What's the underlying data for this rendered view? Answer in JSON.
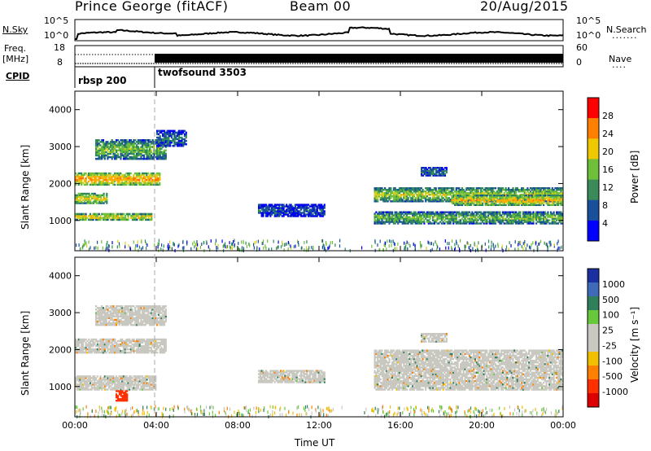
{
  "header": {
    "station": "Prince George (fitACF)",
    "beam": "Beam 00",
    "date": "20/Aug/2015"
  },
  "top_panel": {
    "left_label_nsky": "N.Sky",
    "left_label_freq_1": "Freq.",
    "left_label_freq_2": "[MHz]",
    "left_label_cpid": "CPID",
    "right_label_nsearch": "N.Search",
    "right_label_nave": "Nave",
    "nsky_tick_top": "10^5",
    "nsky_tick_bottom": "10^0",
    "nsearch_tick_top": "10^5",
    "nsearch_tick_bottom": "10^0",
    "freq_tick_top": "18",
    "freq_tick_bottom": "8",
    "nave_tick_top": "60",
    "nave_tick_bottom": "0",
    "cpid_1": "rbsp 200",
    "cpid_2": "twofsound 3503"
  },
  "power_panel": {
    "ylabel": "Slant Range [km]",
    "colorbar_label": "Power [dB]",
    "colorbar_ticks": [
      "28",
      "24",
      "20",
      "16",
      "12",
      "8",
      "4"
    ],
    "colorbar_colors": [
      "#ff0000",
      "#ff7f00",
      "#f0c800",
      "#6fbf3a",
      "#3a8a5a",
      "#1a4f9c",
      "#0000ff"
    ]
  },
  "velocity_panel": {
    "ylabel": "Slant Range [km]",
    "colorbar_label": "Velocity [m s⁻¹]",
    "colorbar_ticks": [
      "1000",
      "500",
      "100",
      "25",
      "-25",
      "-100",
      "-500",
      "-1000"
    ],
    "colorbar_colors": [
      "#1a2fa0",
      "#3f6ab8",
      "#2f7f5a",
      "#66c83a",
      "#c8c8c0",
      "#c8c8c0",
      "#f0c000",
      "#ff8000",
      "#ff3000",
      "#dd0000"
    ]
  },
  "x_axis": {
    "label": "Time UT",
    "ticks": [
      "00:00",
      "04:00",
      "08:00",
      "12:00",
      "16:00",
      "20:00",
      "00:00"
    ]
  },
  "chart_data": {
    "type": "heatmap",
    "x_range_hours": [
      0,
      24
    ],
    "ylim": [
      180,
      4500
    ],
    "y_ticks": [
      1000,
      2000,
      3000,
      4000
    ],
    "mode_change_hour": 4,
    "power_bands": [
      {
        "t0": 0.0,
        "t1": 4.2,
        "r0": 1950,
        "r1": 2300,
        "value": 22
      },
      {
        "t0": 0.0,
        "t1": 3.8,
        "r0": 1000,
        "r1": 1200,
        "value": 20
      },
      {
        "t0": 0.0,
        "t1": 1.6,
        "r0": 1450,
        "r1": 1750,
        "value": 18
      },
      {
        "t0": 1.0,
        "t1": 4.5,
        "r0": 2650,
        "r1": 3200,
        "value": 14
      },
      {
        "t0": 4.0,
        "t1": 5.5,
        "r0": 3000,
        "r1": 3450,
        "value": 10
      },
      {
        "t0": 9.0,
        "t1": 12.3,
        "r0": 1100,
        "r1": 1450,
        "value": 8
      },
      {
        "t0": 14.7,
        "t1": 24.0,
        "r0": 1500,
        "r1": 1900,
        "value": 16
      },
      {
        "t0": 14.7,
        "t1": 24.0,
        "r0": 900,
        "r1": 1250,
        "value": 14
      },
      {
        "t0": 18.5,
        "t1": 24.0,
        "r0": 1400,
        "r1": 1700,
        "value": 20
      },
      {
        "t0": 17.0,
        "t1": 18.3,
        "r0": 2200,
        "r1": 2450,
        "value": 10
      }
    ],
    "velocity_bands": [
      {
        "t0": 0.0,
        "t1": 4.5,
        "r0": 1900,
        "r1": 2300,
        "value": 0
      },
      {
        "t0": 0.0,
        "t1": 4.0,
        "r0": 900,
        "r1": 1300,
        "value": 0
      },
      {
        "t0": 2.0,
        "t1": 2.6,
        "r0": 600,
        "r1": 900,
        "value": -400
      },
      {
        "t0": 1.0,
        "t1": 4.5,
        "r0": 2650,
        "r1": 3200,
        "value": 0
      },
      {
        "t0": 9.0,
        "t1": 12.3,
        "r0": 1100,
        "r1": 1450,
        "value": 0
      },
      {
        "t0": 14.7,
        "t1": 24.0,
        "r0": 900,
        "r1": 2000,
        "value": 0
      },
      {
        "t0": 17.0,
        "t1": 18.3,
        "r0": 2200,
        "r1": 2450,
        "value": 0
      }
    ]
  }
}
